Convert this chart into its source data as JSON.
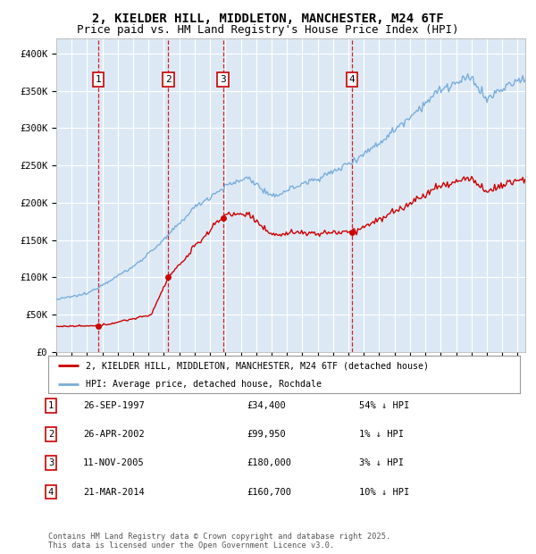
{
  "title": "2, KIELDER HILL, MIDDLETON, MANCHESTER, M24 6TF",
  "subtitle": "Price paid vs. HM Land Registry's House Price Index (HPI)",
  "title_fontsize": 10,
  "subtitle_fontsize": 9,
  "background_color": "#ffffff",
  "plot_bg_color": "#dce9f5",
  "grid_color": "#ffffff",
  "ylabel_ticks": [
    "£0",
    "£50K",
    "£100K",
    "£150K",
    "£200K",
    "£250K",
    "£300K",
    "£350K",
    "£400K"
  ],
  "ylabel_values": [
    0,
    50000,
    100000,
    150000,
    200000,
    250000,
    300000,
    350000,
    400000
  ],
  "ylim": [
    0,
    420000
  ],
  "xlim_start": 1995.0,
  "xlim_end": 2025.5,
  "sale_years_num": [
    1997.73,
    2002.29,
    2005.84,
    2014.21
  ],
  "sale_prices": [
    34400,
    99950,
    180000,
    160700
  ],
  "sale_labels": [
    "1",
    "2",
    "3",
    "4"
  ],
  "legend_label_red": "2, KIELDER HILL, MIDDLETON, MANCHESTER, M24 6TF (detached house)",
  "legend_label_blue": "HPI: Average price, detached house, Rochdale",
  "table_entries": [
    {
      "num": "1",
      "date": "26-SEP-1997",
      "price": "£34,400",
      "note": "54% ↓ HPI"
    },
    {
      "num": "2",
      "date": "26-APR-2002",
      "price": "£99,950",
      "note": "1% ↓ HPI"
    },
    {
      "num": "3",
      "date": "11-NOV-2005",
      "price": "£180,000",
      "note": "3% ↓ HPI"
    },
    {
      "num": "4",
      "date": "21-MAR-2014",
      "price": "£160,700",
      "note": "10% ↓ HPI"
    }
  ],
  "footer": "Contains HM Land Registry data © Crown copyright and database right 2025.\nThis data is licensed under the Open Government Licence v3.0.",
  "red_color": "#cc0000",
  "blue_color": "#7aaddb",
  "dashed_color": "#cc0000"
}
